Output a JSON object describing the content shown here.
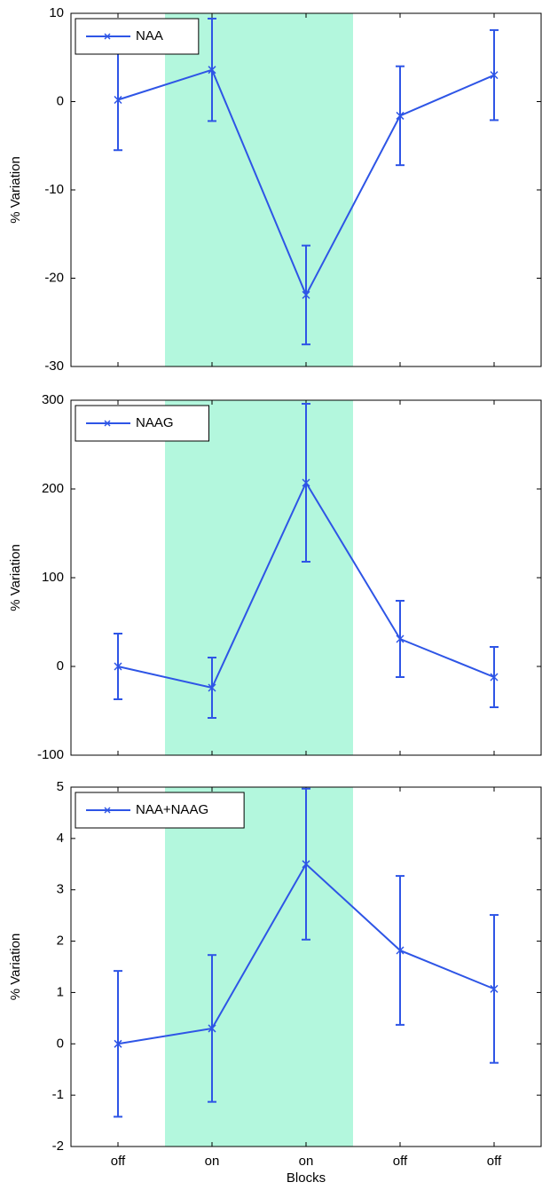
{
  "chart_data": [
    {
      "type": "line",
      "ylabel": "% Variation",
      "categories": [
        null,
        null,
        null,
        null,
        null
      ],
      "series": [
        {
          "name": "NAA",
          "color": "#2e55e6",
          "values": [
            0.2,
            3.6,
            -21.9,
            -1.6,
            3.0
          ],
          "errors": [
            5.7,
            5.8,
            5.6,
            5.6,
            5.1
          ]
        }
      ],
      "ylim": [
        -30,
        10
      ],
      "yticks": [
        -30,
        -20,
        -10,
        0,
        10
      ],
      "legend": "upper left",
      "shade": {
        "from": 1,
        "to": 2,
        "color": "#b3f7dd"
      }
    },
    {
      "type": "line",
      "ylabel": "% Variation",
      "categories": [
        null,
        null,
        null,
        null,
        null
      ],
      "series": [
        {
          "name": "NAAG",
          "color": "#2e55e6",
          "values": [
            0,
            -24,
            207,
            31,
            -12
          ],
          "errors": [
            37,
            34,
            89,
            43,
            34
          ]
        }
      ],
      "ylim": [
        -100,
        300
      ],
      "yticks": [
        -100,
        0,
        100,
        200,
        300
      ],
      "legend": "upper left",
      "shade": {
        "from": 1,
        "to": 2,
        "color": "#b3f7dd"
      }
    },
    {
      "type": "line",
      "ylabel": "% Variation",
      "xlabel": "Blocks",
      "categories": [
        "off",
        "on",
        "on",
        "off",
        "off"
      ],
      "series": [
        {
          "name": "NAA+NAAG",
          "color": "#2e55e6",
          "values": [
            0,
            0.3,
            3.5,
            1.82,
            1.07
          ],
          "errors": [
            1.42,
            1.43,
            1.47,
            1.45,
            1.44
          ]
        }
      ],
      "ylim": [
        -2,
        5
      ],
      "yticks": [
        -2,
        -1,
        0,
        1,
        2,
        3,
        4,
        5
      ],
      "legend": "upper left",
      "shade": {
        "from": 1,
        "to": 2,
        "color": "#b3f7dd"
      }
    }
  ]
}
